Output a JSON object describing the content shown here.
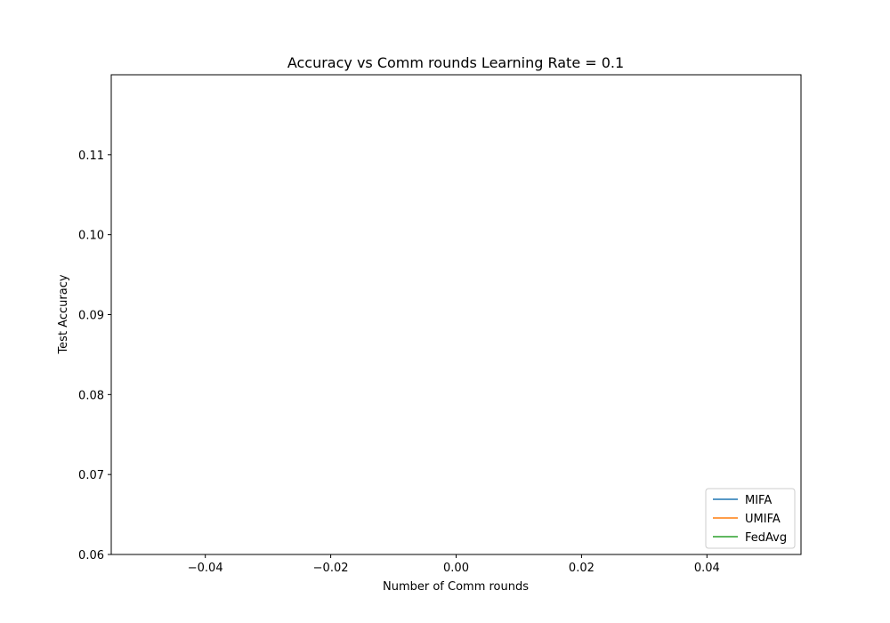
{
  "chart_data": {
    "type": "line",
    "title": "Accuracy vs Comm rounds Learning Rate = 0.1",
    "xlabel": "Number of Comm rounds",
    "ylabel": "Test Accuracy",
    "xlim": [
      -0.055,
      0.055
    ],
    "ylim": [
      0.06,
      0.12
    ],
    "xticks": [
      -0.04,
      -0.02,
      0.0,
      0.02,
      0.04
    ],
    "xtick_labels": [
      "−0.04",
      "−0.02",
      "0.00",
      "0.02",
      "0.04"
    ],
    "yticks": [
      0.06,
      0.07,
      0.08,
      0.09,
      0.1,
      0.11
    ],
    "ytick_labels": [
      "0.06",
      "0.07",
      "0.08",
      "0.09",
      "0.10",
      "0.11"
    ],
    "grid": false,
    "legend_position": "lower-right",
    "series": [
      {
        "name": "MIFA",
        "color": "#1f77b4",
        "x": [],
        "y": []
      },
      {
        "name": "UMIFA",
        "color": "#ff7f0e",
        "x": [],
        "y": []
      },
      {
        "name": "FedAvg",
        "color": "#2ca02c",
        "x": [],
        "y": []
      }
    ]
  }
}
